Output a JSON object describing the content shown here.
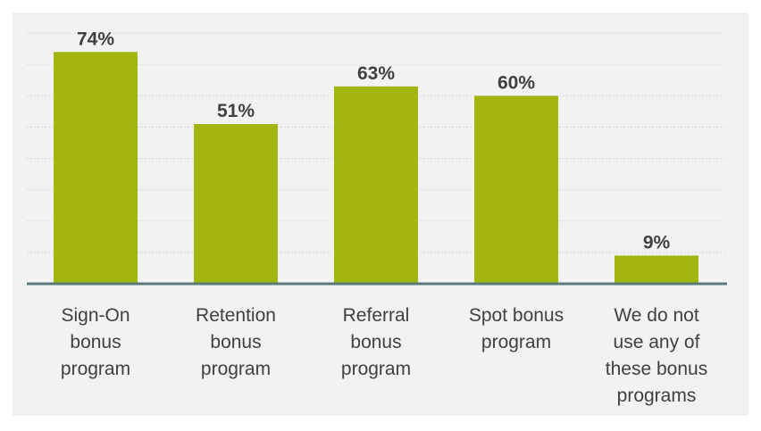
{
  "chart_data": {
    "type": "bar",
    "categories": [
      [
        "Sign-On",
        "bonus",
        "program"
      ],
      [
        "Retention",
        "bonus",
        "program"
      ],
      [
        "Referral",
        "bonus",
        "program"
      ],
      [
        "Spot bonus",
        "program"
      ],
      [
        "We do not",
        "use any of",
        "these bonus",
        "programs"
      ]
    ],
    "values": [
      74,
      51,
      63,
      60,
      9
    ],
    "value_labels": [
      "74%",
      "51%",
      "63%",
      "60%",
      "9%"
    ],
    "title": "",
    "xlabel": "",
    "ylabel": "",
    "ylim": [
      0,
      80
    ],
    "grid": true,
    "colors": {
      "bar": "#a3b50f",
      "axis": "#5a7a7a",
      "grid": "#d9d9d9",
      "text": "#404040",
      "background": "#f2f2f2"
    }
  }
}
